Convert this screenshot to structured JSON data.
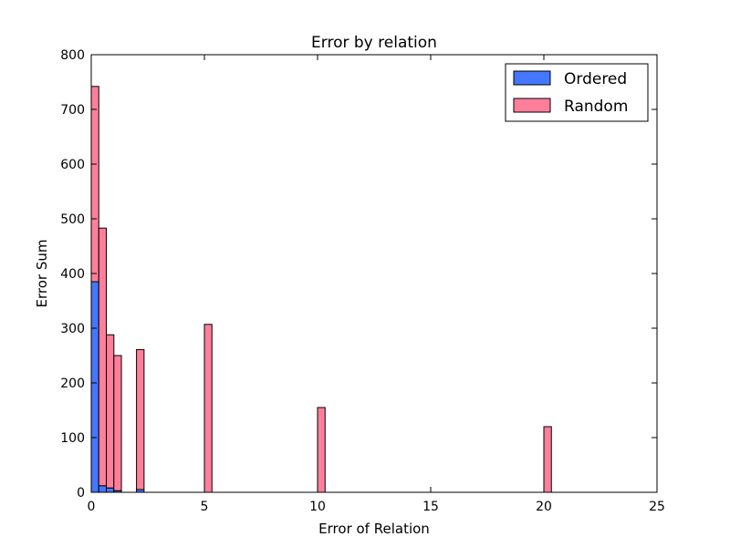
{
  "chart_data": {
    "type": "bar",
    "title": "Error by relation",
    "xlabel": "Error of Relation",
    "ylabel": "Error Sum",
    "xlim": [
      0,
      25
    ],
    "ylim": [
      0,
      800
    ],
    "xticks": [
      0,
      5,
      10,
      15,
      20,
      25
    ],
    "yticks": [
      0,
      100,
      200,
      300,
      400,
      500,
      600,
      700,
      800
    ],
    "bin_width": 0.333,
    "stacked": true,
    "legend_position": "top-right",
    "series": [
      {
        "name": "Ordered",
        "color": "#4477ff",
        "bars": [
          {
            "x": 0.0,
            "value": 385
          },
          {
            "x": 0.333,
            "value": 12
          },
          {
            "x": 0.667,
            "value": 8
          },
          {
            "x": 1.0,
            "value": 3
          },
          {
            "x": 2.0,
            "value": 5
          },
          {
            "x": 5.0,
            "value": 0
          },
          {
            "x": 10.0,
            "value": 0
          },
          {
            "x": 20.0,
            "value": 0
          }
        ]
      },
      {
        "name": "Random",
        "color": "#ff7f9a",
        "bars": [
          {
            "x": 0.0,
            "value": 357
          },
          {
            "x": 0.333,
            "value": 471
          },
          {
            "x": 0.667,
            "value": 280
          },
          {
            "x": 1.0,
            "value": 247
          },
          {
            "x": 2.0,
            "value": 256
          },
          {
            "x": 5.0,
            "value": 307
          },
          {
            "x": 10.0,
            "value": 155
          },
          {
            "x": 20.0,
            "value": 120
          }
        ]
      }
    ]
  }
}
